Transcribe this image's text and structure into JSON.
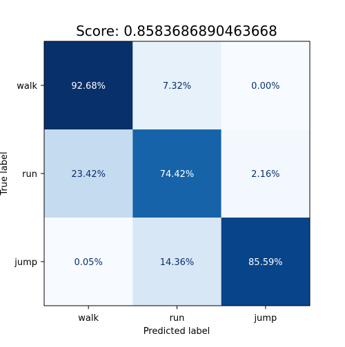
{
  "chart_data": {
    "type": "heatmap",
    "title": "Score: 0.8583686890463668",
    "xlabel": "Predicted label",
    "ylabel": "True label",
    "x_categories": [
      "walk",
      "run",
      "jump"
    ],
    "y_categories": [
      "walk",
      "run",
      "jump"
    ],
    "values": [
      [
        92.68,
        7.32,
        0.0
      ],
      [
        23.42,
        74.42,
        2.16
      ],
      [
        0.05,
        14.36,
        85.59
      ]
    ],
    "value_labels": [
      [
        "92.68%",
        "7.32%",
        "0.00%"
      ],
      [
        "23.42%",
        "74.42%",
        "2.16%"
      ],
      [
        "0.05%",
        "14.36%",
        "85.59%"
      ]
    ],
    "colormap": "Blues",
    "colors": {
      "text_dark": "#08306b",
      "text_light": "#ffffff"
    },
    "grid": false
  }
}
